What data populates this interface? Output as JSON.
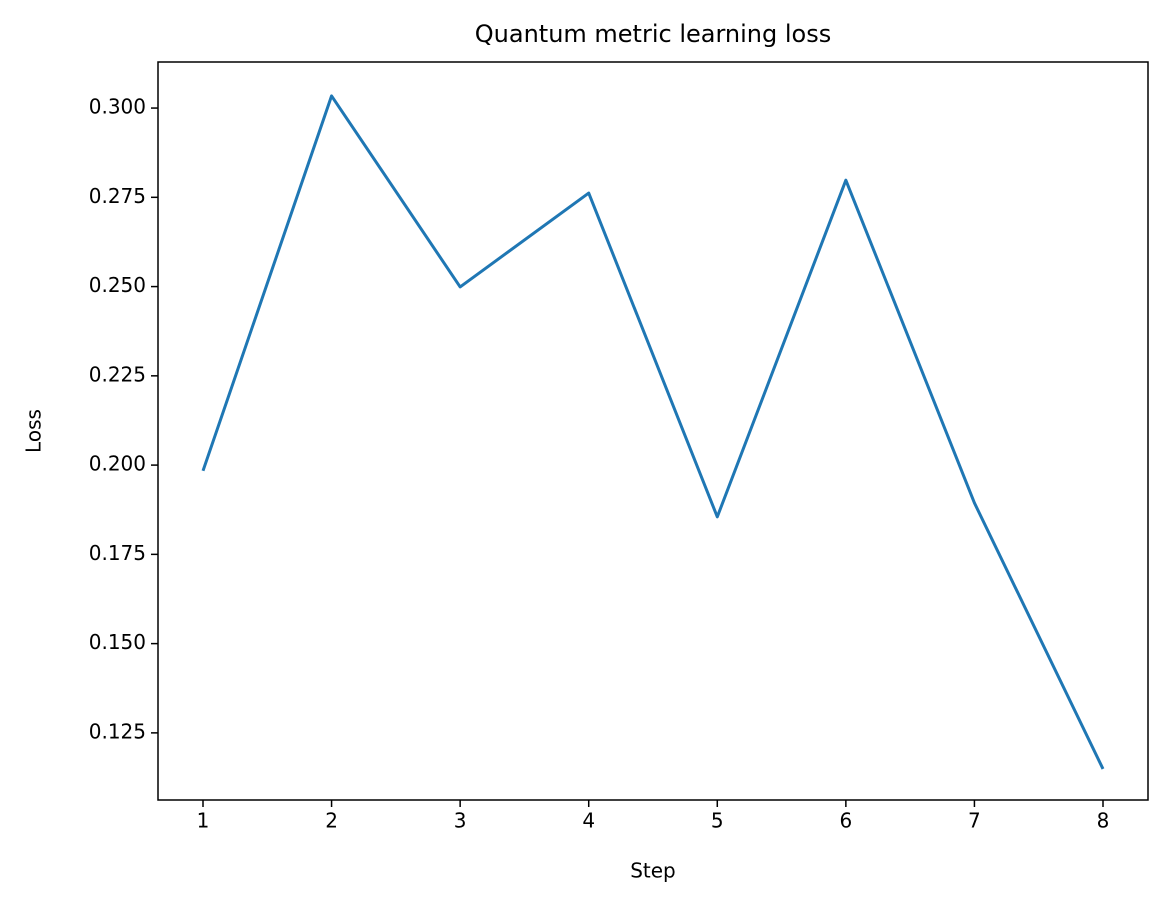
{
  "chart_data": {
    "type": "line",
    "title": "Quantum metric learning loss",
    "x_label": "Step",
    "y_label": "Loss",
    "x": [
      1,
      2,
      3,
      4,
      5,
      6,
      7,
      8
    ],
    "series": [
      {
        "name": "Loss",
        "color": "#1f77b4",
        "values": [
          0.1984,
          0.3034,
          0.2499,
          0.2762,
          0.1855,
          0.2798,
          0.1894,
          0.1149
        ]
      }
    ],
    "xlim": [
      0.65,
      8.35
    ],
    "xticks": [
      1,
      2,
      3,
      4,
      5,
      6,
      7,
      8
    ],
    "ylim": [
      0.1062,
      0.3129
    ],
    "yticks": [
      {
        "value": 0.125,
        "label": "0.125"
      },
      {
        "value": 0.15,
        "label": "0.150"
      },
      {
        "value": 0.175,
        "label": "0.175"
      },
      {
        "value": 0.2,
        "label": "0.200"
      },
      {
        "value": 0.225,
        "label": "0.225"
      },
      {
        "value": 0.25,
        "label": "0.250"
      },
      {
        "value": 0.275,
        "label": "0.275"
      },
      {
        "value": 0.3,
        "label": "0.300"
      }
    ],
    "grid": false,
    "legend": false
  }
}
